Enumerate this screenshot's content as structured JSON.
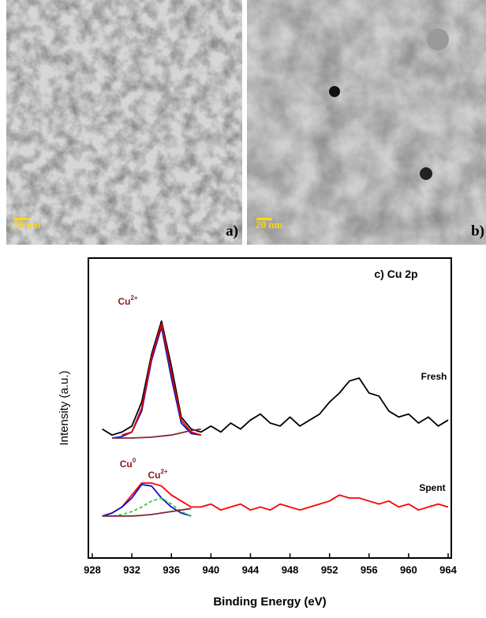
{
  "panels": [
    {
      "label": "a)",
      "scale": "20 nm"
    },
    {
      "label": "b)",
      "scale": "20 nm"
    }
  ],
  "chart_data": {
    "type": "line",
    "xlabel": "Binding Energy (eV)",
    "ylabel": "Intensity (a.u.)",
    "xlim": [
      928,
      964
    ],
    "xticks": [
      928,
      932,
      936,
      940,
      944,
      948,
      952,
      956,
      960,
      964
    ],
    "ylim": [
      0,
      100
    ],
    "annotations": [
      {
        "text": "c) Cu 2p"
      },
      {
        "text": "Cu",
        "sup": "2+"
      },
      {
        "text": "Fresh"
      },
      {
        "text": "Cu",
        "sup": "0"
      },
      {
        "text": "Cu",
        "sup": "2+"
      },
      {
        "text": "Spent"
      }
    ],
    "series": [
      {
        "name": "Fresh",
        "color": "#000000",
        "x": [
          929,
          930,
          931,
          932,
          933,
          934,
          935,
          936,
          937,
          938,
          939,
          940,
          941,
          942,
          943,
          944,
          945,
          946,
          947,
          948,
          949,
          950,
          951,
          952,
          953,
          954,
          955,
          956,
          957,
          958,
          959,
          960,
          961,
          962,
          963,
          964
        ],
        "values": [
          43,
          41,
          42,
          44,
          52,
          68,
          79,
          64,
          47,
          43,
          42,
          44,
          42,
          45,
          43,
          46,
          48,
          45,
          44,
          47,
          44,
          46,
          48,
          52,
          55,
          59,
          60,
          55,
          54,
          49,
          47,
          48,
          45,
          47,
          44,
          46
        ]
      },
      {
        "color": "#1010d0",
        "x": [
          930,
          931,
          932,
          933,
          934,
          935,
          936,
          937,
          938,
          939
        ],
        "values": [
          40,
          40.5,
          42,
          49,
          66,
          77,
          60,
          45,
          41.5,
          41
        ]
      },
      {
        "color": "#e00000",
        "x": [
          931,
          932,
          933,
          934,
          935,
          936,
          937,
          938,
          939
        ],
        "values": [
          41,
          42,
          50,
          67,
          78,
          62,
          46,
          42,
          41
        ]
      },
      {
        "color": "#7a2a3a",
        "x": [
          930,
          932,
          934,
          936,
          938,
          939
        ],
        "values": [
          40,
          40,
          40.3,
          41,
          42.5,
          43
        ]
      },
      {
        "name": "Spent",
        "color": "#ff0000",
        "x": [
          929,
          930,
          931,
          932,
          933,
          934,
          935,
          936,
          937,
          938,
          939,
          940,
          941,
          942,
          943,
          944,
          945,
          946,
          947,
          948,
          949,
          950,
          951,
          952,
          953,
          954,
          955,
          956,
          957,
          958,
          959,
          960,
          961,
          962,
          963,
          964
        ],
        "values": [
          14,
          15,
          17,
          21,
          25,
          25,
          24,
          21,
          19,
          17,
          17,
          18,
          16,
          17,
          18,
          16,
          17,
          16,
          18,
          17,
          16,
          17,
          18,
          19,
          21,
          20,
          20,
          19,
          18,
          19,
          17,
          18,
          16,
          17,
          18,
          17
        ]
      },
      {
        "color": "#1010d0",
        "x": [
          929,
          930,
          931,
          932,
          933,
          934,
          935,
          936,
          937,
          938
        ],
        "values": [
          14,
          15,
          17,
          20,
          24.5,
          24,
          20,
          17,
          15,
          14
        ]
      },
      {
        "color": "#30d030",
        "style": "dashed",
        "x": [
          929,
          930,
          931,
          932,
          933,
          934,
          935,
          936,
          937,
          938
        ],
        "values": [
          14,
          14,
          14.5,
          15.5,
          17,
          19,
          20,
          18,
          15.5,
          14
        ]
      },
      {
        "color": "#7a2a3a",
        "x": [
          929,
          930,
          931,
          932,
          933,
          934,
          935,
          936,
          937,
          938
        ],
        "values": [
          14,
          14,
          14,
          14,
          14.2,
          14.5,
          15,
          15.5,
          16,
          16.5
        ]
      }
    ]
  }
}
